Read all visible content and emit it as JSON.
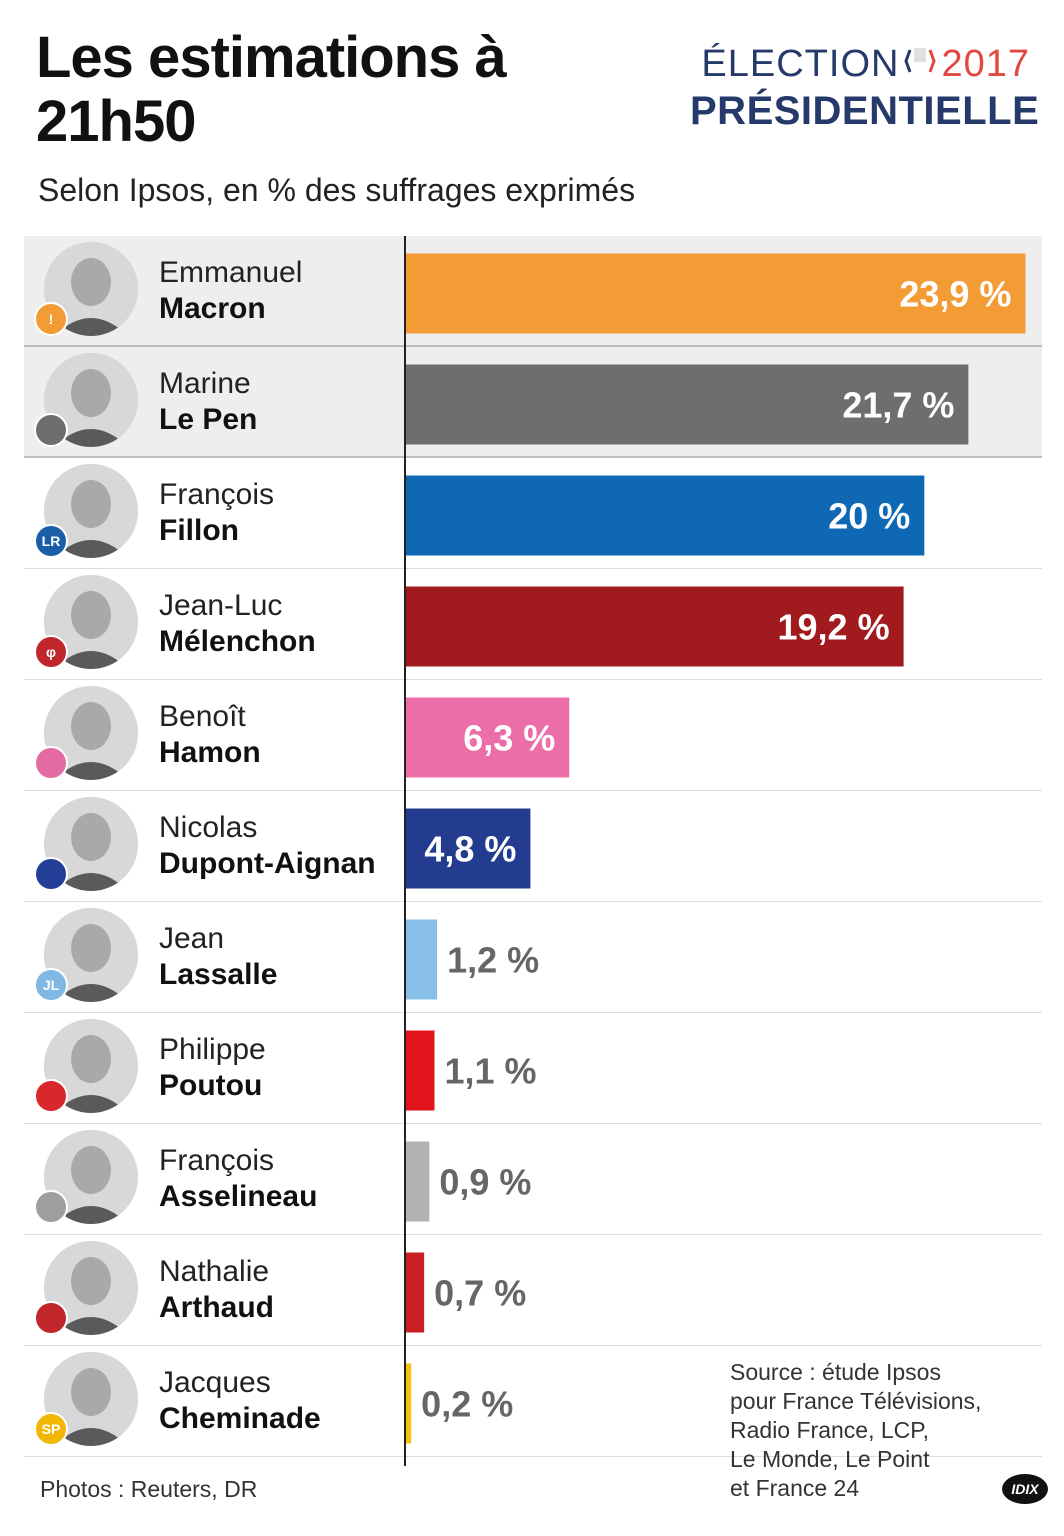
{
  "title": "Les estimations à 21h50",
  "subtitle": "Selon Ipsos, en % des suffrages exprimés",
  "logo": {
    "line1_word": "ÉLECTION",
    "year": "2017",
    "line2": "PRÉSIDENTIELLE"
  },
  "candidates": [
    {
      "first": "Emmanuel",
      "last": "Macron",
      "badge": "!",
      "badge_color": "#f39c35"
    },
    {
      "first": "Marine",
      "last": "Le Pen",
      "badge": "",
      "badge_color": "#6e6e6e"
    },
    {
      "first": "François",
      "last": "Fillon",
      "badge": "LR",
      "badge_color": "#1a5ea8"
    },
    {
      "first": "Jean-Luc",
      "last": "Mélenchon",
      "badge": "φ",
      "badge_color": "#c0272d"
    },
    {
      "first": "Benoît",
      "last": "Hamon",
      "badge": "",
      "badge_color": "#e46ba3"
    },
    {
      "first": "Nicolas",
      "last": "Dupont-Aignan",
      "badge": "",
      "badge_color": "#243f97"
    },
    {
      "first": "Jean",
      "last": "Lassalle",
      "badge": "JL",
      "badge_color": "#7fb8e2"
    },
    {
      "first": "Philippe",
      "last": "Poutou",
      "badge": "",
      "badge_color": "#d9272e"
    },
    {
      "first": "François",
      "last": "Asselineau",
      "badge": "",
      "badge_color": "#9e9e9e"
    },
    {
      "first": "Nathalie",
      "last": "Arthaud",
      "badge": "",
      "badge_color": "#c1262b"
    },
    {
      "first": "Jacques",
      "last": "Cheminade",
      "badge": "SP",
      "badge_color": "#f2b705"
    }
  ],
  "chart_data": {
    "type": "bar",
    "orientation": "horizontal",
    "categories": [
      "Emmanuel Macron",
      "Marine Le Pen",
      "François Fillon",
      "Jean-Luc Mélenchon",
      "Benoît Hamon",
      "Nicolas Dupont-Aignan",
      "Jean Lassalle",
      "Philippe Poutou",
      "François Asselineau",
      "Nathalie Arthaud",
      "Jacques Cheminade"
    ],
    "values": [
      23.9,
      21.7,
      20,
      19.2,
      6.3,
      4.8,
      1.2,
      1.1,
      0.9,
      0.7,
      0.2
    ],
    "labels": [
      "23,9 %",
      "21,7 %",
      "20 %",
      "19,2 %",
      "6,3 %",
      "4,8 %",
      "1,2 %",
      "1,1 %",
      "0,9 %",
      "0,7 %",
      "0,2 %"
    ],
    "colors": [
      "#f39c35",
      "#6e6e6e",
      "#0f68b4",
      "#a11a1e",
      "#ec6ea8",
      "#233c8f",
      "#88bfe9",
      "#e1141c",
      "#b2b2b2",
      "#c81e24",
      "#f5c20f"
    ],
    "xlim": [
      0,
      24
    ]
  },
  "source": [
    "Source : étude Ipsos",
    "pour France Télévisions,",
    "Radio France, LCP,",
    "Le Monde, Le Point",
    "et France 24"
  ],
  "photos_credit": "Photos : Reuters, DR",
  "agency": "IDIX"
}
